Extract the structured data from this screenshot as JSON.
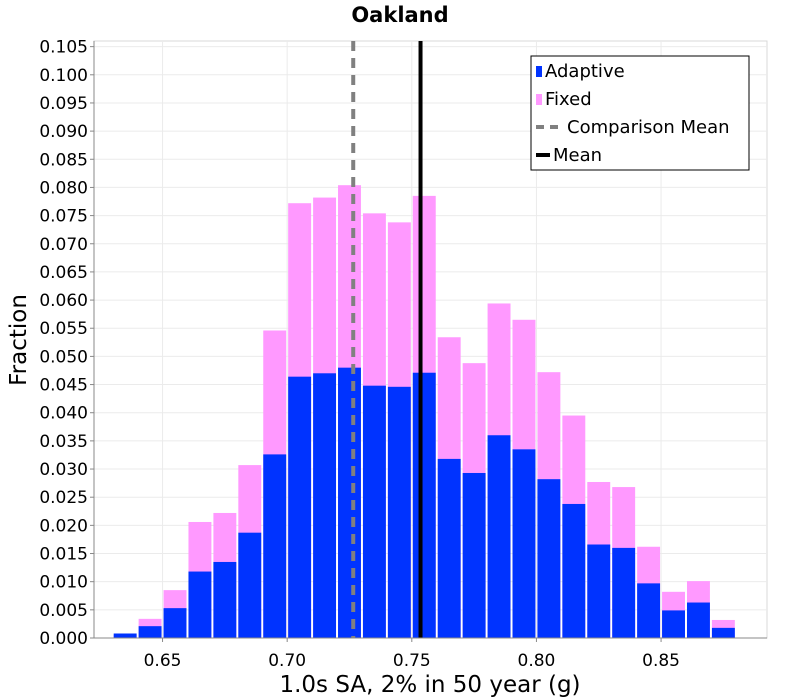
{
  "chart_data": {
    "type": "bar",
    "title": "Oakland",
    "xlabel": "1.0s SA, 2% in 50 year (g)",
    "ylabel": "Fraction",
    "xlim": [
      0.6225,
      0.8925
    ],
    "ylim": [
      0,
      0.106
    ],
    "x_ticks": [
      "0.65",
      "0.70",
      "0.75",
      "0.80",
      "0.85"
    ],
    "y_ticks": [
      "0.000",
      "0.005",
      "0.010",
      "0.015",
      "0.020",
      "0.025",
      "0.030",
      "0.035",
      "0.040",
      "0.045",
      "0.050",
      "0.055",
      "0.060",
      "0.065",
      "0.070",
      "0.075",
      "0.080",
      "0.085",
      "0.090",
      "0.095",
      "0.100",
      "0.105"
    ],
    "bin_width": 0.01,
    "bin_centers": [
      0.635,
      0.645,
      0.655,
      0.665,
      0.675,
      0.685,
      0.695,
      0.705,
      0.715,
      0.725,
      0.735,
      0.745,
      0.755,
      0.765,
      0.775,
      0.785,
      0.795,
      0.805,
      0.815,
      0.825,
      0.835,
      0.845,
      0.855,
      0.865,
      0.875
    ],
    "series": [
      {
        "name": "Adaptive",
        "color": "#0033ff",
        "values": [
          0.0008,
          0.0021,
          0.0053,
          0.0118,
          0.0135,
          0.0187,
          0.0326,
          0.0464,
          0.047,
          0.048,
          0.0448,
          0.0446,
          0.0471,
          0.0318,
          0.0293,
          0.036,
          0.0335,
          0.0282,
          0.0238,
          0.0166,
          0.016,
          0.0097,
          0.0049,
          0.0063,
          0.0018
        ]
      },
      {
        "name": "Fixed",
        "color": "#ff99ff",
        "values": [
          0.0006,
          0.0034,
          0.0085,
          0.0206,
          0.0222,
          0.0307,
          0.0546,
          0.0772,
          0.0782,
          0.0804,
          0.0754,
          0.0738,
          0.0785,
          0.0534,
          0.0488,
          0.0594,
          0.0565,
          0.0472,
          0.0395,
          0.0277,
          0.0268,
          0.0162,
          0.0082,
          0.0101,
          0.0032
        ]
      }
    ],
    "lines": [
      {
        "name": "Comparison Mean",
        "x": 0.7265,
        "color": "#808080",
        "style": "dashed"
      },
      {
        "name": "Mean",
        "x": 0.7535,
        "color": "#000000",
        "style": "solid"
      }
    ],
    "grid": true,
    "legend_position": "top-right"
  }
}
